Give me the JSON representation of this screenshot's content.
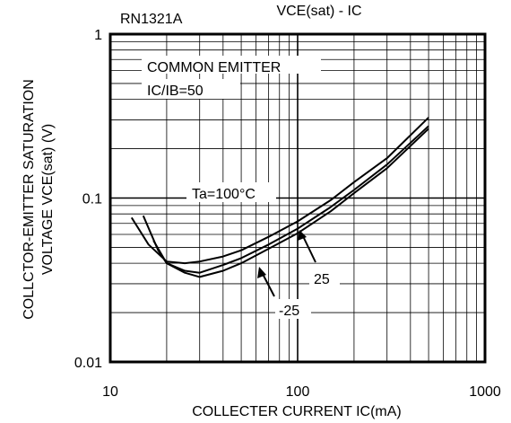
{
  "part_number": "RN1321A",
  "chart_data": {
    "type": "line",
    "title": "VCE(sat) - IC",
    "xlabel": "COLLECTER CURRENT IC(mA)",
    "ylabel_line1": "COLLCTOR-EMITTER SATURATION",
    "ylabel_line2": "VOLTAGE VCE(sat) (V)",
    "x_scale": "log",
    "y_scale": "log",
    "xlim": [
      10,
      1000
    ],
    "ylim": [
      0.01,
      1
    ],
    "x_ticks": [
      {
        "value": 10,
        "label": "10"
      },
      {
        "value": 100,
        "label": "100"
      },
      {
        "value": 1000,
        "label": "1000"
      }
    ],
    "y_ticks": [
      {
        "value": 0.01,
        "label": "0.01"
      },
      {
        "value": 0.1,
        "label": "0.1"
      },
      {
        "value": 1,
        "label": "1"
      }
    ],
    "grid": true,
    "annotations": {
      "condition1": "COMMON EMITTER",
      "condition2": "IC/IB=50"
    },
    "series": [
      {
        "name": "Ta=100°C",
        "x": [
          13,
          16,
          20,
          25,
          30,
          40,
          50,
          70,
          100,
          150,
          200,
          300,
          500
        ],
        "y": [
          0.076,
          0.052,
          0.041,
          0.04,
          0.041,
          0.044,
          0.048,
          0.058,
          0.072,
          0.097,
          0.125,
          0.175,
          0.31
        ]
      },
      {
        "name": "25",
        "x": [
          15,
          18,
          20,
          25,
          30,
          40,
          50,
          70,
          100,
          150,
          200,
          300,
          500
        ],
        "y": [
          0.078,
          0.048,
          0.04,
          0.036,
          0.035,
          0.039,
          0.043,
          0.052,
          0.065,
          0.088,
          0.112,
          0.16,
          0.275
        ]
      },
      {
        "name": "-25",
        "x": [
          17,
          20,
          25,
          30,
          40,
          50,
          70,
          100,
          150,
          200,
          300,
          500
        ],
        "y": [
          0.055,
          0.04,
          0.035,
          0.033,
          0.036,
          0.04,
          0.049,
          0.061,
          0.083,
          0.107,
          0.152,
          0.265
        ]
      }
    ]
  }
}
